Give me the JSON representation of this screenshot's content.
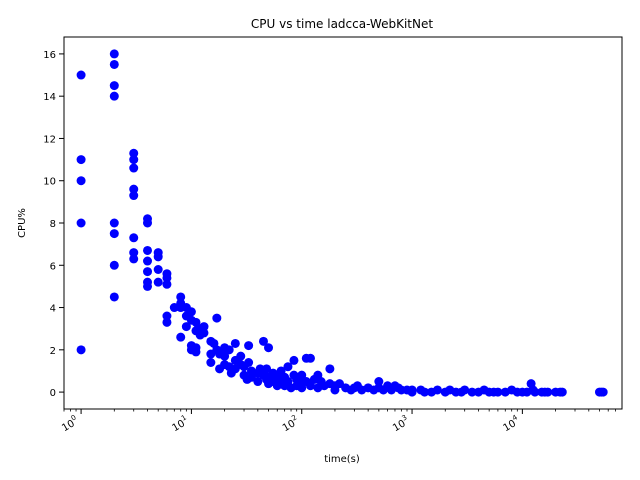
{
  "chart_data": {
    "type": "scatter",
    "title": "CPU vs time ladcca-WebKitNet",
    "xlabel": "time(s)",
    "ylabel": "CPU%",
    "xscale": "log",
    "xlim": [
      0.7,
      80000
    ],
    "ylim": [
      -0.8,
      16.8
    ],
    "x_ticks": [
      1,
      10,
      100,
      1000,
      10000
    ],
    "x_tick_labels": [
      {
        "base": "10",
        "exp": "0"
      },
      {
        "base": "10",
        "exp": "1"
      },
      {
        "base": "10",
        "exp": "2"
      },
      {
        "base": "10",
        "exp": "3"
      },
      {
        "base": "10",
        "exp": "4"
      }
    ],
    "y_ticks": [
      0,
      2,
      4,
      6,
      8,
      10,
      12,
      14,
      16
    ],
    "y_tick_labels": [
      "0",
      "2",
      "4",
      "6",
      "8",
      "10",
      "12",
      "14",
      "16"
    ],
    "grid": false,
    "legend": "none",
    "marker_color": "#0000ff",
    "points": [
      [
        1,
        15
      ],
      [
        1,
        11
      ],
      [
        1,
        10
      ],
      [
        1,
        8
      ],
      [
        1,
        2
      ],
      [
        2,
        16
      ],
      [
        2,
        15.5
      ],
      [
        2,
        14.5
      ],
      [
        2,
        14
      ],
      [
        2,
        8
      ],
      [
        2,
        7.5
      ],
      [
        2,
        6
      ],
      [
        2,
        4.5
      ],
      [
        3,
        11.3
      ],
      [
        3,
        11
      ],
      [
        3,
        10.6
      ],
      [
        3,
        9.6
      ],
      [
        3,
        9.3
      ],
      [
        3,
        7.3
      ],
      [
        3,
        6.6
      ],
      [
        3,
        6.3
      ],
      [
        4,
        8.2
      ],
      [
        4,
        8
      ],
      [
        4,
        6.7
      ],
      [
        4,
        6.2
      ],
      [
        4,
        5.7
      ],
      [
        4,
        5.2
      ],
      [
        4,
        5
      ],
      [
        5,
        6.6
      ],
      [
        5,
        6.4
      ],
      [
        5,
        5.8
      ],
      [
        5,
        5.2
      ],
      [
        6,
        5.6
      ],
      [
        6,
        5.4
      ],
      [
        6,
        5.1
      ],
      [
        6,
        3.6
      ],
      [
        6,
        3.3
      ],
      [
        7,
        4
      ],
      [
        8,
        4.5
      ],
      [
        8,
        4.2
      ],
      [
        8,
        4
      ],
      [
        8,
        2.6
      ],
      [
        9,
        4
      ],
      [
        9,
        3.6
      ],
      [
        9,
        3.1
      ],
      [
        10,
        3.8
      ],
      [
        10,
        3.4
      ],
      [
        10,
        2.2
      ],
      [
        10,
        2
      ],
      [
        11,
        3.3
      ],
      [
        11,
        2.9
      ],
      [
        11,
        2.1
      ],
      [
        11,
        1.9
      ],
      [
        12,
        3
      ],
      [
        12,
        2.7
      ],
      [
        13,
        3.1
      ],
      [
        13,
        2.8
      ],
      [
        15,
        2.4
      ],
      [
        15,
        1.8
      ],
      [
        15,
        1.4
      ],
      [
        16,
        2.3
      ],
      [
        17,
        3.5
      ],
      [
        17,
        2
      ],
      [
        18,
        1.8
      ],
      [
        18,
        1.1
      ],
      [
        20,
        2.1
      ],
      [
        20,
        1.7
      ],
      [
        20,
        1.3
      ],
      [
        22,
        2
      ],
      [
        22,
        1.2
      ],
      [
        23,
        0.9
      ],
      [
        25,
        2.3
      ],
      [
        25,
        1.5
      ],
      [
        25,
        1.1
      ],
      [
        28,
        1.7
      ],
      [
        28,
        1.3
      ],
      [
        30,
        1.2
      ],
      [
        30,
        0.8
      ],
      [
        32,
        0.6
      ],
      [
        33,
        2.2
      ],
      [
        33,
        1.4
      ],
      [
        35,
        1
      ],
      [
        35,
        0.7
      ],
      [
        40,
        0.9
      ],
      [
        40,
        0.5
      ],
      [
        42,
        1.1
      ],
      [
        45,
        2.4
      ],
      [
        45,
        0.8
      ],
      [
        48,
        1.1
      ],
      [
        48,
        0.6
      ],
      [
        50,
        2.1
      ],
      [
        50,
        0.7
      ],
      [
        50,
        0.4
      ],
      [
        55,
        0.9
      ],
      [
        55,
        0.5
      ],
      [
        60,
        0.8
      ],
      [
        60,
        0.3
      ],
      [
        65,
        1
      ],
      [
        65,
        0.6
      ],
      [
        70,
        0.7
      ],
      [
        70,
        0.3
      ],
      [
        75,
        1.2
      ],
      [
        75,
        0.5
      ],
      [
        80,
        0.2
      ],
      [
        85,
        1.5
      ],
      [
        85,
        0.8
      ],
      [
        90,
        0.6
      ],
      [
        90,
        0.3
      ],
      [
        95,
        0.7
      ],
      [
        100,
        0.8
      ],
      [
        100,
        0.4
      ],
      [
        100,
        0.2
      ],
      [
        110,
        1.6
      ],
      [
        110,
        0.5
      ],
      [
        120,
        1.6
      ],
      [
        120,
        0.3
      ],
      [
        130,
        0.6
      ],
      [
        140,
        0.8
      ],
      [
        140,
        0.2
      ],
      [
        150,
        0.5
      ],
      [
        160,
        0.3
      ],
      [
        180,
        1.1
      ],
      [
        180,
        0.4
      ],
      [
        200,
        0.3
      ],
      [
        200,
        0.1
      ],
      [
        220,
        0.4
      ],
      [
        250,
        0.2
      ],
      [
        280,
        0.1
      ],
      [
        300,
        0.2
      ],
      [
        320,
        0.3
      ],
      [
        350,
        0.1
      ],
      [
        400,
        0.2
      ],
      [
        450,
        0.1
      ],
      [
        500,
        0.5
      ],
      [
        500,
        0.2
      ],
      [
        550,
        0.1
      ],
      [
        600,
        0.3
      ],
      [
        650,
        0.1
      ],
      [
        700,
        0.3
      ],
      [
        750,
        0.2
      ],
      [
        800,
        0.1
      ],
      [
        900,
        0.1
      ],
      [
        1000,
        0.1
      ],
      [
        1000,
        0
      ],
      [
        1200,
        0.1
      ],
      [
        1300,
        0
      ],
      [
        1500,
        0
      ],
      [
        1700,
        0.1
      ],
      [
        2000,
        0
      ],
      [
        2200,
        0.1
      ],
      [
        2500,
        0
      ],
      [
        2800,
        0
      ],
      [
        3000,
        0.1
      ],
      [
        3500,
        0
      ],
      [
        4000,
        0
      ],
      [
        4500,
        0.1
      ],
      [
        5000,
        0
      ],
      [
        5500,
        0
      ],
      [
        6000,
        0
      ],
      [
        7000,
        0
      ],
      [
        8000,
        0.1
      ],
      [
        9000,
        0
      ],
      [
        10000,
        0
      ],
      [
        11000,
        0
      ],
      [
        12000,
        0.4
      ],
      [
        12500,
        0.1
      ],
      [
        13000,
        0
      ],
      [
        15000,
        0
      ],
      [
        16000,
        0
      ],
      [
        17000,
        0
      ],
      [
        20000,
        0
      ],
      [
        22000,
        0
      ],
      [
        23000,
        0
      ],
      [
        50000,
        0
      ],
      [
        52000,
        0
      ],
      [
        54000,
        0
      ]
    ]
  }
}
